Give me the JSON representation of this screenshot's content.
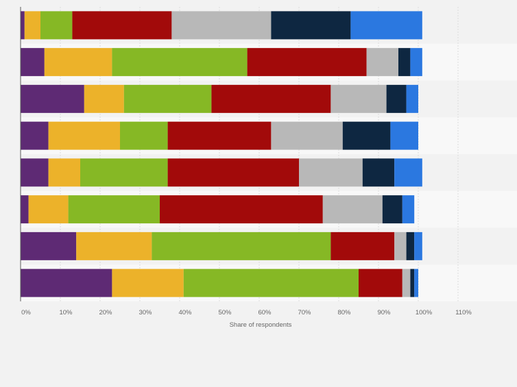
{
  "chart_data": {
    "type": "bar",
    "orientation": "horizontal",
    "stacked": true,
    "title": "",
    "xlabel": "Share of respondents",
    "ylabel": "",
    "xlim": [
      0,
      120
    ],
    "x_ticks": [
      "0%",
      "10%",
      "20%",
      "30%",
      "40%",
      "50%",
      "60%",
      "70%",
      "80%",
      "90%",
      "100%",
      "110%"
    ],
    "grid": true,
    "legend": "none",
    "categories": [
      "",
      "",
      "",
      "",
      "",
      "",
      "",
      ""
    ],
    "series": [
      {
        "color": "#5e2a74",
        "values": [
          1,
          6,
          16,
          7,
          7,
          2,
          14,
          23
        ]
      },
      {
        "color": "#ecb22a",
        "values": [
          4,
          17,
          10,
          18,
          8,
          10,
          19,
          18
        ]
      },
      {
        "color": "#86b825",
        "values": [
          8,
          34,
          22,
          12,
          22,
          23,
          45,
          44
        ]
      },
      {
        "color": "#a20a0a",
        "values": [
          25,
          30,
          30,
          26,
          33,
          41,
          16,
          11
        ]
      },
      {
        "color": "#b8b8b8",
        "values": [
          25,
          8,
          14,
          18,
          16,
          15,
          3,
          2
        ]
      },
      {
        "color": "#0e2741",
        "values": [
          20,
          3,
          5,
          12,
          8,
          5,
          2,
          1
        ]
      },
      {
        "color": "#2b78e0",
        "values": [
          18,
          3,
          3,
          7,
          7,
          3,
          2,
          1
        ]
      }
    ]
  }
}
